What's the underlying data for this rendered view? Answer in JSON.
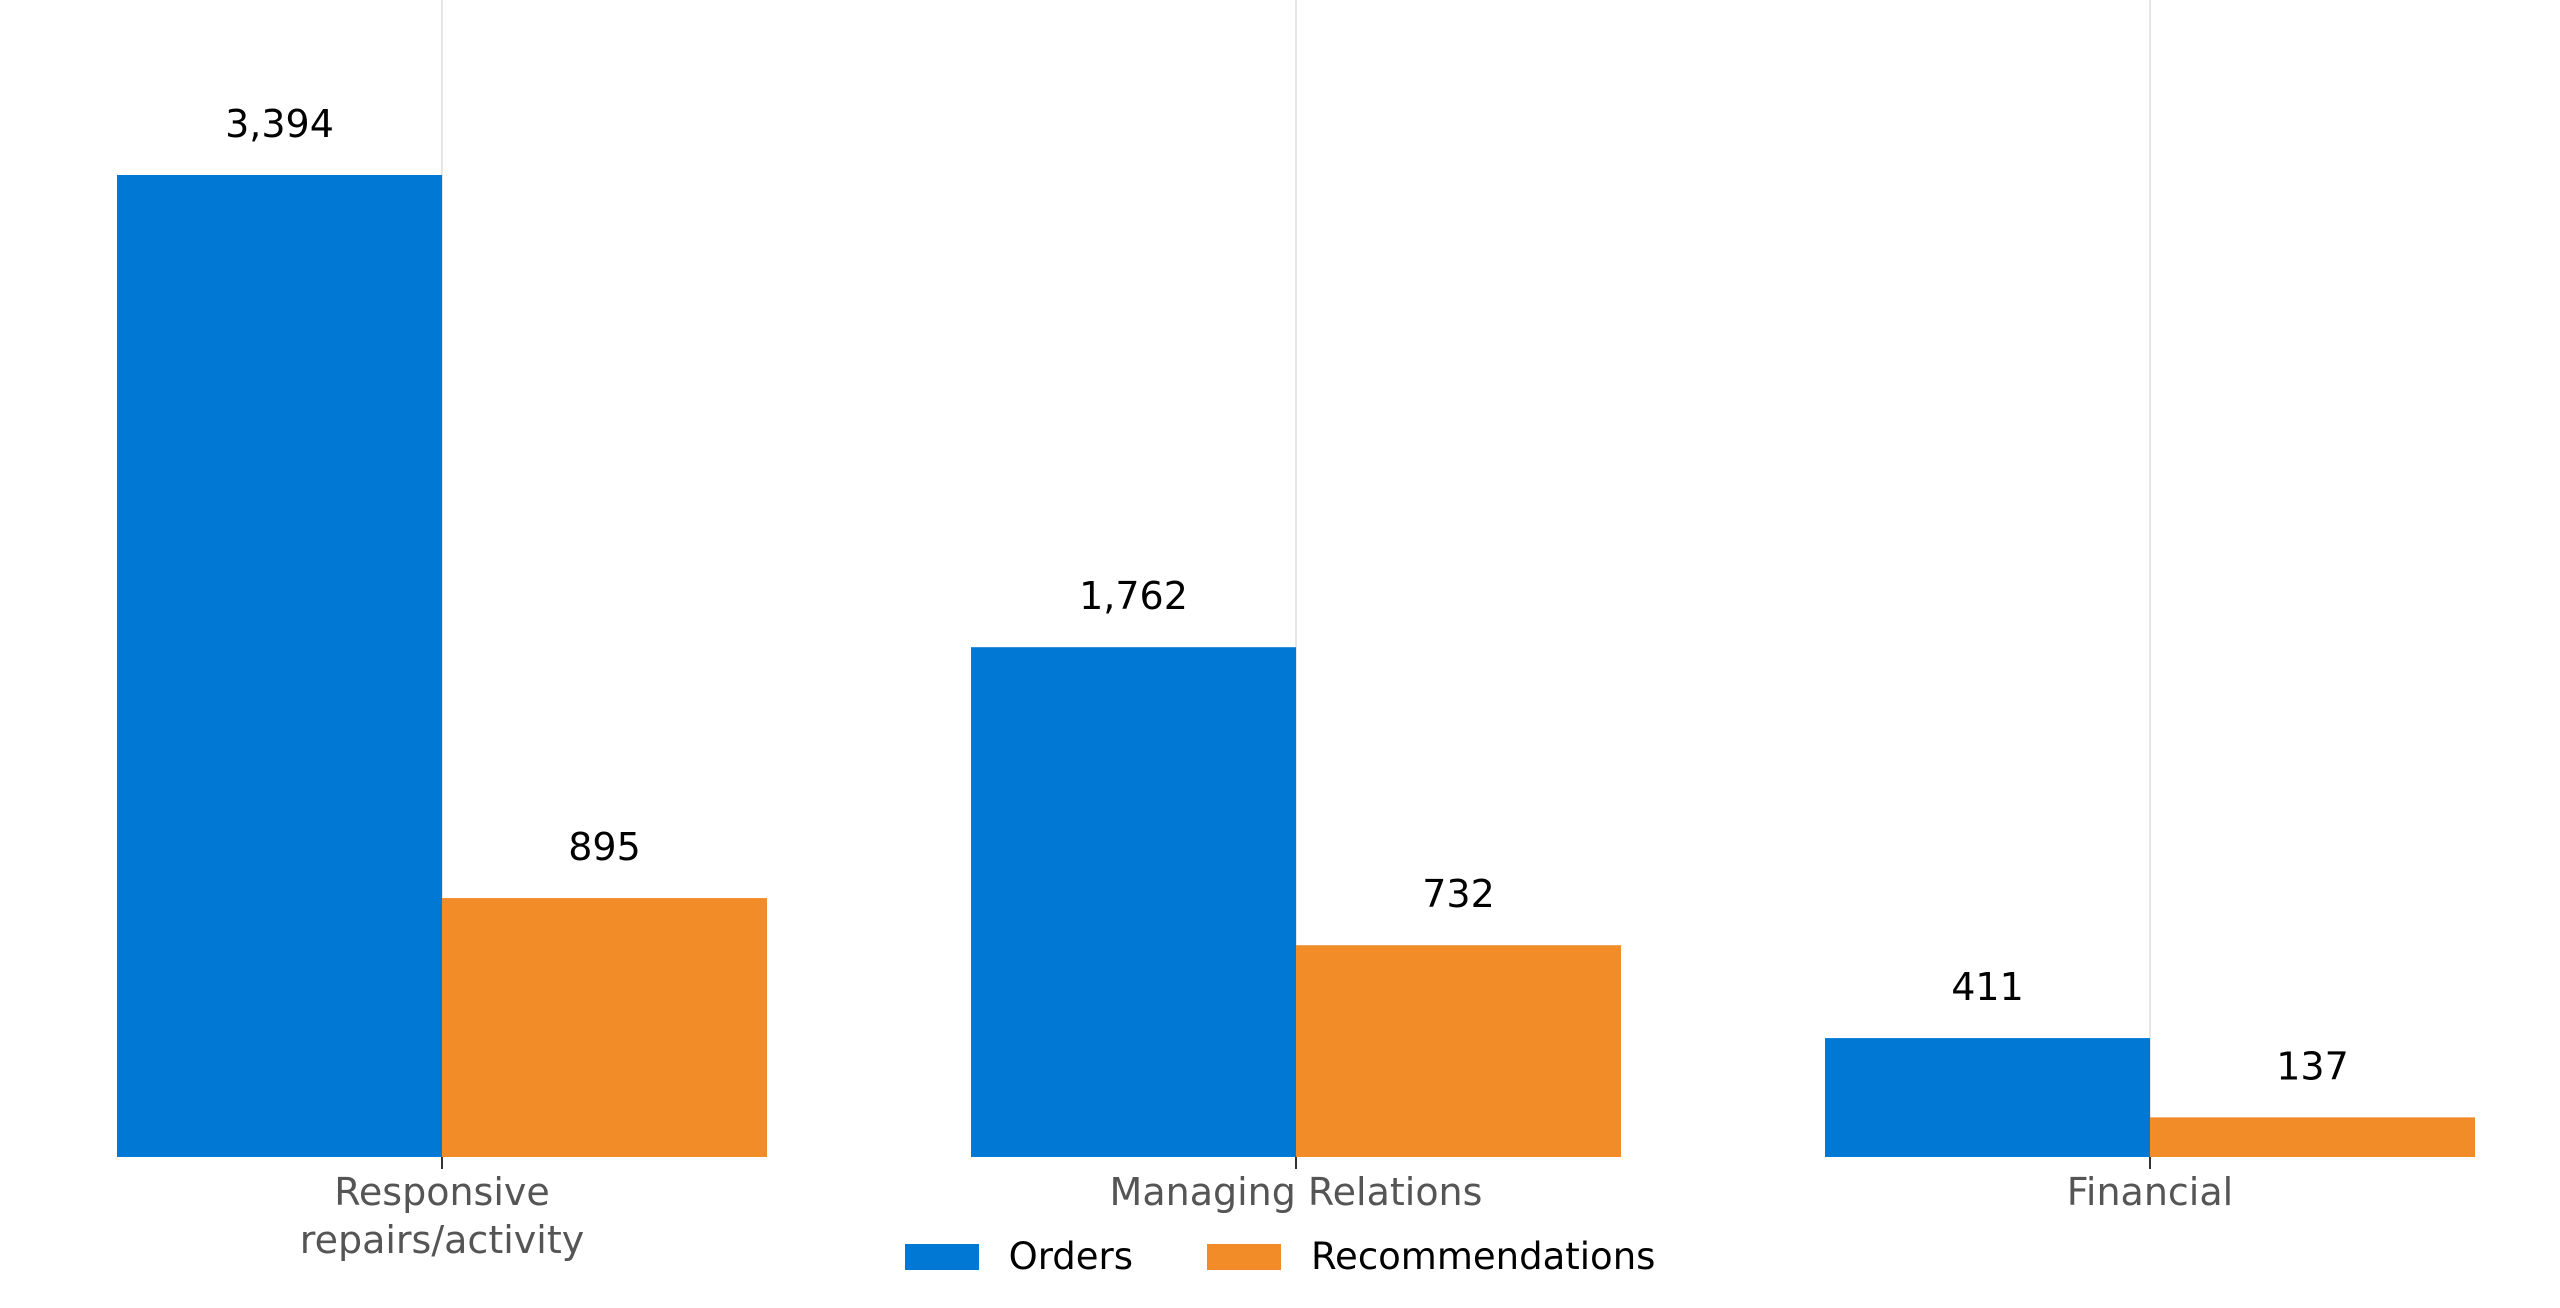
{
  "chart_data": {
    "type": "bar",
    "categories": [
      "Responsive repairs/activity",
      "Managing Relations",
      "Financial"
    ],
    "category_lines": [
      [
        "Responsive",
        "repairs/activity"
      ],
      [
        "Managing Relations"
      ],
      [
        "Financial"
      ]
    ],
    "series": [
      {
        "name": "Orders",
        "values": [
          3394,
          1762,
          411
        ],
        "labels": [
          "3,394",
          "1,762",
          "411"
        ],
        "color": "#0078d4"
      },
      {
        "name": "Recommendations",
        "values": [
          895,
          732,
          137
        ],
        "labels": [
          "895",
          "732",
          "137"
        ],
        "color": "#f28c28"
      }
    ],
    "title": "",
    "xlabel": "",
    "ylabel": "",
    "ylim": [
      0,
      3800
    ],
    "grid": "vertical lines at category centers",
    "legend_position": "bottom-center",
    "y_axis_visible": false
  }
}
